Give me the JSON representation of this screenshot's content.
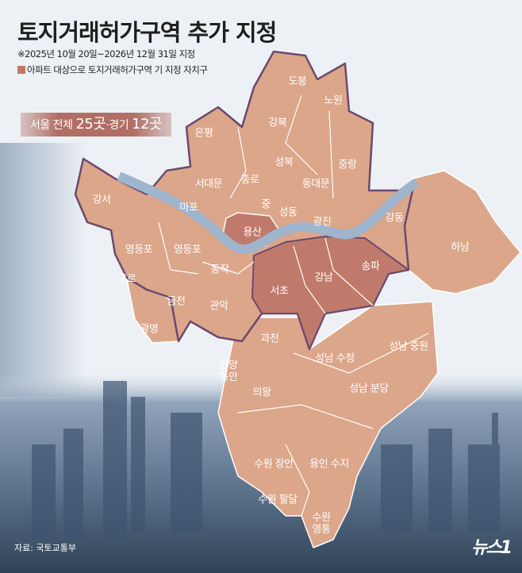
{
  "title": "토지거래허가구역 추가 지정",
  "subtitle": "※2025년 10월 20일~2026년 12월 31일 지정",
  "legend": {
    "label": "아파트 대상으로 토지거래허가구역 기 지정 자치구",
    "color": "#c07a6b"
  },
  "badge": {
    "prefix": "서울 전체 ",
    "seoul_count": "25곳",
    "sep": "·경기 ",
    "gyeonggi_count": "12곳"
  },
  "colors": {
    "region": "#dba68a",
    "highlight": "#c07a6b",
    "border": "#6b4a6e",
    "river": "#9fb4cd",
    "background": "#edf1f6"
  },
  "districts": [
    {
      "name": "도봉",
      "highlight": false
    },
    {
      "name": "노원",
      "highlight": false
    },
    {
      "name": "강북",
      "highlight": false
    },
    {
      "name": "은평",
      "highlight": false
    },
    {
      "name": "성북",
      "highlight": false
    },
    {
      "name": "중랑",
      "highlight": false
    },
    {
      "name": "종로",
      "highlight": false
    },
    {
      "name": "서대문",
      "highlight": false
    },
    {
      "name": "동대문",
      "highlight": false
    },
    {
      "name": "마포",
      "highlight": false
    },
    {
      "name": "중",
      "highlight": false
    },
    {
      "name": "강서",
      "highlight": false
    },
    {
      "name": "성동",
      "highlight": false
    },
    {
      "name": "광진",
      "highlight": false
    },
    {
      "name": "강동",
      "highlight": false
    },
    {
      "name": "하남",
      "highlight": false
    },
    {
      "name": "용산",
      "highlight": true
    },
    {
      "name": "영등포",
      "highlight": false
    },
    {
      "name": "영등포",
      "highlight": false
    },
    {
      "name": "송파",
      "highlight": true
    },
    {
      "name": "동작",
      "highlight": false
    },
    {
      "name": "구로",
      "highlight": false
    },
    {
      "name": "강남",
      "highlight": true
    },
    {
      "name": "서초",
      "highlight": true
    },
    {
      "name": "금천",
      "highlight": false
    },
    {
      "name": "관악",
      "highlight": false
    },
    {
      "name": "광명",
      "highlight": false
    },
    {
      "name": "과천",
      "highlight": false
    },
    {
      "name": "성남 중원",
      "highlight": false
    },
    {
      "name": "성남 수정",
      "highlight": false
    },
    {
      "name": "안양\n동안",
      "highlight": false
    },
    {
      "name": "의왕",
      "highlight": false
    },
    {
      "name": "성남 분당",
      "highlight": false
    },
    {
      "name": "용인 수지",
      "highlight": false
    },
    {
      "name": "수원 장안",
      "highlight": false
    },
    {
      "name": "수원 팔달",
      "highlight": false
    },
    {
      "name": "수원\n영통",
      "highlight": false
    }
  ],
  "source": "자료: 국토교통부",
  "logo": "뉴스1"
}
